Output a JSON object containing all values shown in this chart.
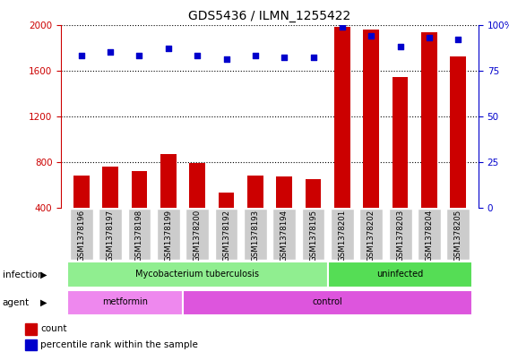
{
  "title": "GDS5436 / ILMN_1255422",
  "samples": [
    "GSM1378196",
    "GSM1378197",
    "GSM1378198",
    "GSM1378199",
    "GSM1378200",
    "GSM1378192",
    "GSM1378193",
    "GSM1378194",
    "GSM1378195",
    "GSM1378201",
    "GSM1378202",
    "GSM1378203",
    "GSM1378204",
    "GSM1378205"
  ],
  "counts": [
    680,
    760,
    720,
    870,
    790,
    530,
    680,
    670,
    650,
    1980,
    1960,
    1540,
    1930,
    1720
  ],
  "percentiles": [
    83,
    85,
    83,
    87,
    83,
    81,
    83,
    82,
    82,
    99,
    94,
    88,
    93,
    92
  ],
  "ylim_left": [
    400,
    2000
  ],
  "ylim_right": [
    0,
    100
  ],
  "yticks_left": [
    400,
    800,
    1200,
    1600,
    2000
  ],
  "yticks_right": [
    0,
    25,
    50,
    75,
    100
  ],
  "grid_values": [
    800,
    1200,
    1600
  ],
  "bar_color": "#cc0000",
  "dot_color": "#0000cc",
  "infection_labels": [
    {
      "text": "Mycobacterium tuberculosis",
      "start": 0,
      "end": 9,
      "color": "#90ee90"
    },
    {
      "text": "uninfected",
      "start": 9,
      "end": 14,
      "color": "#55dd55"
    }
  ],
  "agent_labels": [
    {
      "text": "metformin",
      "start": 0,
      "end": 4,
      "color": "#ee88ee"
    },
    {
      "text": "control",
      "start": 4,
      "end": 14,
      "color": "#dd55dd"
    }
  ],
  "legend_items": [
    {
      "label": "count",
      "color": "#cc0000"
    },
    {
      "label": "percentile rank within the sample",
      "color": "#0000cc"
    }
  ],
  "infection_row_label": "infection",
  "agent_row_label": "agent",
  "left_axis_color": "#cc0000",
  "right_axis_color": "#0000cc",
  "title_fontsize": 10,
  "tick_fontsize": 7.5,
  "bar_width": 0.55,
  "xtick_bg_color": "#cccccc",
  "plot_bg_color": "#ffffff"
}
